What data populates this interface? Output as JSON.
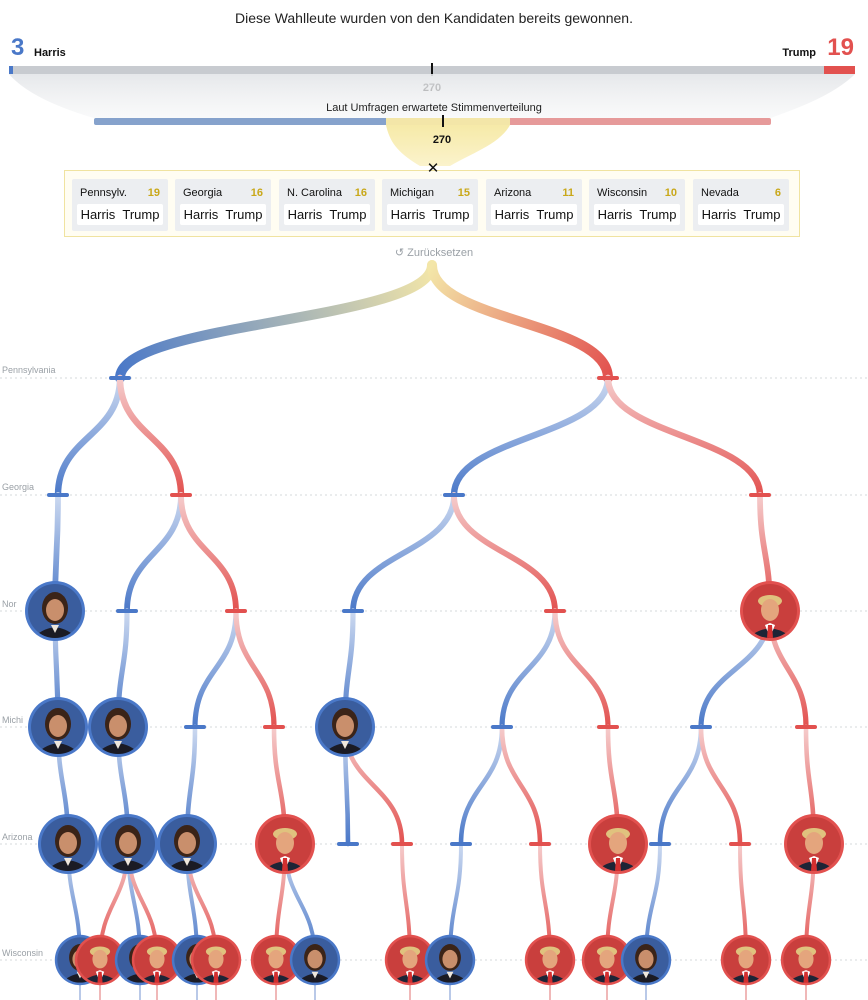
{
  "header": {
    "headline": "Diese Wahlleute wurden von den Kandidaten bereits gewonnen.",
    "harris_count": "3",
    "harris_label": "Harris",
    "trump_count": "19",
    "trump_label": "Trump",
    "threshold": "270",
    "poll_label": "Laut Umfragen erwartete Stimmenverteilung",
    "poll_threshold": "270",
    "close_symbol": "✕",
    "reset_label": "↺ Zurücksetzen"
  },
  "colors": {
    "harris": "#4a78c8",
    "trump": "#e2514f",
    "tossup": "#f3e6a8",
    "bar_grey": "#c8cbd0"
  },
  "states": [
    {
      "name": "Pennsylv.",
      "votes": "19",
      "option_a": "Harris",
      "option_b": "Trump"
    },
    {
      "name": "Georgia",
      "votes": "16",
      "option_a": "Harris",
      "option_b": "Trump"
    },
    {
      "name": "N. Carolina",
      "votes": "16",
      "option_a": "Harris",
      "option_b": "Trump"
    },
    {
      "name": "Michigan",
      "votes": "15",
      "option_a": "Harris",
      "option_b": "Trump"
    },
    {
      "name": "Arizona",
      "votes": "11",
      "option_a": "Harris",
      "option_b": "Trump"
    },
    {
      "name": "Wisconsin",
      "votes": "10",
      "option_a": "Harris",
      "option_b": "Trump"
    },
    {
      "name": "Nevada",
      "votes": "6",
      "option_a": "Harris",
      "option_b": "Trump"
    }
  ],
  "tree": {
    "row_labels": [
      "Pennsylvania",
      "Georgia",
      "Nor",
      "Michi",
      "Arizona",
      "Wisconsin"
    ],
    "levels": [
      [
        "H",
        "T"
      ],
      [
        "H",
        "T",
        "H",
        "T"
      ],
      [
        "Hwin",
        "H",
        "T",
        "H",
        "T",
        "Twin"
      ],
      [
        "Hwin",
        "Hwin",
        "H",
        "T",
        "Hwin",
        "H",
        "T",
        "H",
        "T",
        "H",
        "T"
      ],
      [
        "Hwin",
        "Hwin",
        "Hwin",
        "Twin",
        "H",
        "T",
        "H",
        "T",
        "Twin",
        "H",
        "T",
        "Twin"
      ],
      [
        "H",
        "T",
        "H",
        "T",
        "H",
        "T",
        "T",
        "H",
        "T",
        "H",
        "T",
        "T",
        "H",
        "T",
        "T"
      ]
    ]
  }
}
